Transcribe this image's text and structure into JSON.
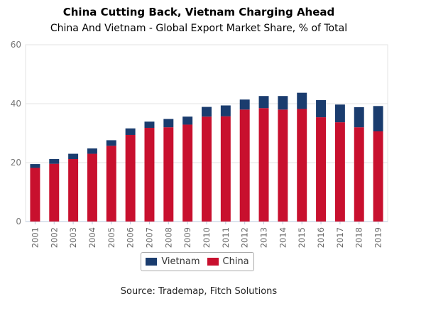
{
  "title": "China Cutting Back, Vietnam Charging Ahead",
  "subtitle": "China And Vietnam - Global Export Market Share, % of Total",
  "source": "Source: Trademap, Fitch Solutions",
  "colors": {
    "vietnam": "#1a3c6e",
    "china": "#c8102e",
    "grid": "#e3e3e3",
    "axis": "#b8c8dc"
  },
  "legend": [
    {
      "name": "Vietnam",
      "color": "#1a3c6e"
    },
    {
      "name": "China",
      "color": "#c8102e"
    }
  ],
  "chart_data": {
    "type": "bar",
    "stacked": true,
    "categories": [
      "2001",
      "2002",
      "2003",
      "2004",
      "2005",
      "2006",
      "2007",
      "2008",
      "2009",
      "2010",
      "2011",
      "2012",
      "2013",
      "2014",
      "2015",
      "2016",
      "2017",
      "2018",
      "2019"
    ],
    "series": [
      {
        "name": "China",
        "values": [
          18.2,
          19.6,
          21.2,
          23.0,
          25.7,
          29.4,
          31.8,
          32.0,
          32.9,
          35.6,
          35.7,
          38.0,
          38.5,
          38.0,
          38.2,
          35.4,
          33.7,
          32.0,
          30.6
        ]
      },
      {
        "name": "Vietnam",
        "values": [
          1.3,
          1.6,
          1.8,
          1.8,
          1.9,
          2.2,
          2.1,
          2.8,
          2.7,
          3.3,
          3.7,
          3.4,
          4.1,
          4.6,
          5.5,
          5.8,
          6.0,
          6.8,
          8.6
        ]
      }
    ],
    "ylim": [
      0,
      60
    ],
    "yticks": [
      0,
      20,
      40,
      60
    ],
    "grid": true,
    "legend_position": "bottom"
  }
}
